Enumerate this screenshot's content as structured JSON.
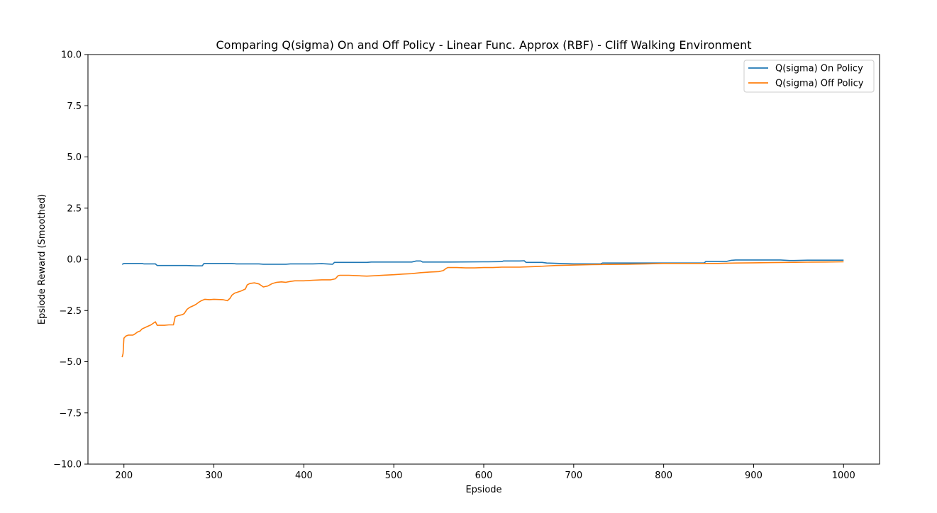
{
  "chart_data": {
    "type": "line",
    "title": "Comparing Q(sigma) On and Off Policy - Linear Func. Approx (RBF) - Cliff Walking Environment",
    "xlabel": "Epsiode",
    "ylabel": "Epsiode Reward (Smoothed)",
    "xlim": [
      160,
      1040
    ],
    "ylim": [
      -10.0,
      10.0
    ],
    "xticks": [
      200,
      300,
      400,
      500,
      600,
      700,
      800,
      900,
      1000
    ],
    "xtick_labels": [
      "200",
      "300",
      "400",
      "500",
      "600",
      "700",
      "800",
      "900",
      "1000"
    ],
    "yticks": [
      -10.0,
      -7.5,
      -5.0,
      -2.5,
      0.0,
      2.5,
      5.0,
      7.5,
      10.0
    ],
    "ytick_labels": [
      "−10.0",
      "−7.5",
      "−5.0",
      "−2.5",
      "0.0",
      "2.5",
      "5.0",
      "7.5",
      "10.0"
    ],
    "grid": false,
    "legend_position": "top-right",
    "series": [
      {
        "name": "Q(sigma) On Policy",
        "color": "#1f77b4",
        "x": [
          198,
          200,
          202,
          220,
          222,
          235,
          237,
          260,
          265,
          270,
          280,
          287,
          289,
          300,
          320,
          325,
          350,
          355,
          380,
          385,
          410,
          420,
          432,
          434,
          460,
          470,
          475,
          500,
          520,
          525,
          530,
          532,
          560,
          600,
          605,
          620,
          622,
          640,
          645,
          647,
          665,
          670,
          690,
          700,
          720,
          730,
          732,
          760,
          800,
          820,
          845,
          847,
          870,
          875,
          880,
          900,
          930,
          940,
          945,
          960,
          1000
        ],
        "y": [
          -0.25,
          -0.2,
          -0.2,
          -0.2,
          -0.22,
          -0.22,
          -0.3,
          -0.3,
          -0.3,
          -0.3,
          -0.32,
          -0.32,
          -0.2,
          -0.2,
          -0.2,
          -0.22,
          -0.22,
          -0.24,
          -0.24,
          -0.22,
          -0.22,
          -0.21,
          -0.24,
          -0.15,
          -0.15,
          -0.15,
          -0.13,
          -0.13,
          -0.13,
          -0.08,
          -0.08,
          -0.13,
          -0.13,
          -0.12,
          -0.12,
          -0.11,
          -0.08,
          -0.08,
          -0.07,
          -0.15,
          -0.15,
          -0.18,
          -0.21,
          -0.22,
          -0.22,
          -0.22,
          -0.18,
          -0.18,
          -0.18,
          -0.18,
          -0.18,
          -0.1,
          -0.1,
          -0.05,
          -0.03,
          -0.03,
          -0.03,
          -0.06,
          -0.06,
          -0.04,
          -0.04
        ]
      },
      {
        "name": "Q(sigma) Off Policy",
        "color": "#ff7f0e",
        "x": [
          198,
          199,
          200,
          202,
          205,
          210,
          212,
          215,
          218,
          220,
          225,
          230,
          235,
          237,
          240,
          245,
          250,
          255,
          257,
          260,
          265,
          267,
          270,
          273,
          278,
          280,
          283,
          286,
          290,
          295,
          300,
          310,
          315,
          318,
          320,
          323,
          330,
          335,
          337,
          340,
          345,
          350,
          355,
          360,
          365,
          370,
          375,
          380,
          385,
          390,
          395,
          400,
          410,
          420,
          430,
          435,
          438,
          440,
          450,
          460,
          470,
          480,
          490,
          500,
          510,
          520,
          530,
          540,
          550,
          555,
          558,
          560,
          570,
          580,
          590,
          600,
          610,
          620,
          640,
          660,
          680,
          700,
          720,
          740,
          760,
          780,
          800,
          820,
          840,
          860,
          880,
          900,
          920,
          940,
          960,
          980,
          1000
        ],
        "y": [
          -4.78,
          -4.6,
          -3.85,
          -3.75,
          -3.7,
          -3.7,
          -3.65,
          -3.55,
          -3.5,
          -3.4,
          -3.3,
          -3.2,
          -3.05,
          -3.22,
          -3.22,
          -3.22,
          -3.2,
          -3.2,
          -2.8,
          -2.75,
          -2.7,
          -2.65,
          -2.45,
          -2.35,
          -2.25,
          -2.2,
          -2.1,
          -2.02,
          -1.95,
          -1.97,
          -1.95,
          -1.97,
          -2.02,
          -1.9,
          -1.75,
          -1.65,
          -1.55,
          -1.45,
          -1.25,
          -1.18,
          -1.15,
          -1.2,
          -1.35,
          -1.3,
          -1.18,
          -1.12,
          -1.1,
          -1.12,
          -1.08,
          -1.05,
          -1.05,
          -1.05,
          -1.02,
          -1.0,
          -1.0,
          -0.95,
          -0.8,
          -0.78,
          -0.78,
          -0.8,
          -0.82,
          -0.8,
          -0.77,
          -0.75,
          -0.72,
          -0.7,
          -0.65,
          -0.62,
          -0.6,
          -0.55,
          -0.45,
          -0.4,
          -0.4,
          -0.42,
          -0.42,
          -0.4,
          -0.4,
          -0.38,
          -0.38,
          -0.35,
          -0.3,
          -0.28,
          -0.26,
          -0.25,
          -0.24,
          -0.22,
          -0.2,
          -0.2,
          -0.2,
          -0.2,
          -0.18,
          -0.17,
          -0.16,
          -0.15,
          -0.14,
          -0.13,
          -0.12
        ]
      }
    ]
  }
}
